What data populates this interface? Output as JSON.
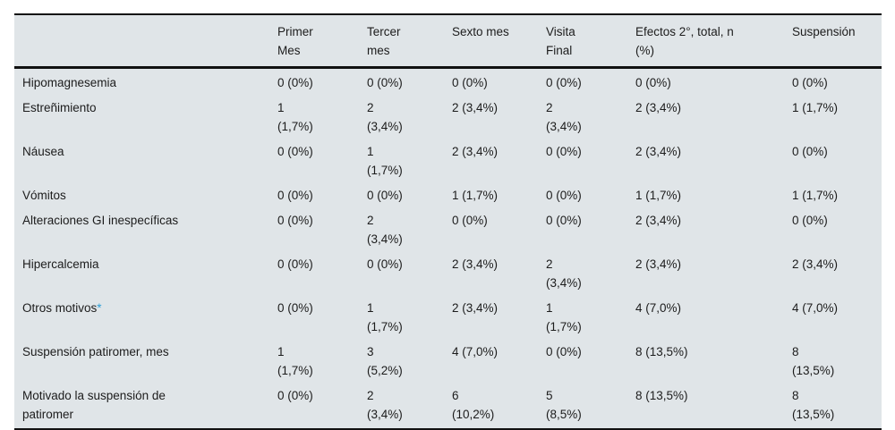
{
  "colors": {
    "table_background": "#e0e5e8",
    "rule_color": "#111111",
    "text_color": "#1c1c1c",
    "footnote_asterisk_color": "#2e9fd6"
  },
  "table": {
    "headers": {
      "label": "",
      "col1": "Primer\nMes",
      "col2": "Tercer\nmes",
      "col3": "Sexto mes",
      "col4": "Visita\nFinal",
      "col5": "Efectos 2°, total, n\n(%)",
      "col6": "Suspensión"
    },
    "rows": [
      {
        "label": "Hipomagnesemia",
        "cells": [
          "0 (0%)",
          "0 (0%)",
          "0 (0%)",
          "0 (0%)",
          "0 (0%)",
          "0 (0%)"
        ]
      },
      {
        "label": "Estreñimiento",
        "cells": [
          "1\n(1,7%)",
          "2\n(3,4%)",
          "2 (3,4%)",
          "2\n(3,4%)",
          "2 (3,4%)",
          "1 (1,7%)"
        ]
      },
      {
        "label": "Náusea",
        "cells": [
          "0 (0%)",
          "1\n(1,7%)",
          "2 (3,4%)",
          "0 (0%)",
          "2 (3,4%)",
          "0 (0%)"
        ]
      },
      {
        "label": "Vómitos",
        "cells": [
          "0 (0%)",
          "0 (0%)",
          "1 (1,7%)",
          "0 (0%)",
          "1 (1,7%)",
          "1 (1,7%)"
        ]
      },
      {
        "label": "Alteraciones GI inespecíficas",
        "cells": [
          "0 (0%)",
          "2\n(3,4%)",
          "0 (0%)",
          "0 (0%)",
          "2 (3,4%)",
          "0 (0%)"
        ]
      },
      {
        "label": "Hipercalcemia",
        "cells": [
          "0 (0%)",
          "0 (0%)",
          "2 (3,4%)",
          "2\n(3,4%)",
          "2 (3,4%)",
          "2 (3,4%)"
        ]
      },
      {
        "label": "Otros motivos",
        "label_note": "*",
        "cells": [
          "0 (0%)",
          "1\n(1,7%)",
          "2 (3,4%)",
          "1\n(1,7%)",
          "4 (7,0%)",
          "4 (7,0%)"
        ]
      },
      {
        "label": "Suspensión patiromer, mes",
        "cells": [
          "1\n(1,7%)",
          "3\n(5,2%)",
          "4 (7,0%)",
          "0 (0%)",
          "8 (13,5%)",
          "8\n(13,5%)"
        ]
      },
      {
        "label": "Motivado la suspensión de\npatiromer",
        "cells": [
          "0 (0%)",
          "2\n(3,4%)",
          "6\n(10,2%)",
          "5\n(8,5%)",
          "8 (13,5%)",
          "8\n(13,5%)"
        ]
      }
    ]
  }
}
